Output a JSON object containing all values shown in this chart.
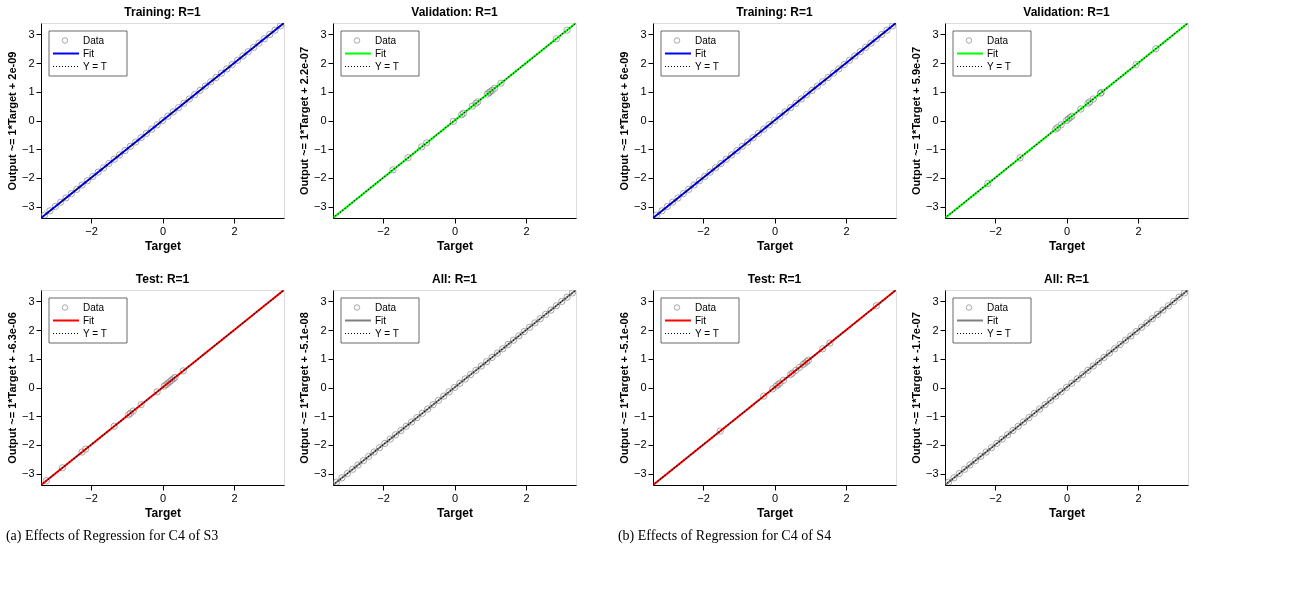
{
  "chart_data": [
    {
      "type": "scatter",
      "title": "Training: R=1",
      "xlabel": "Target",
      "ylabel": "Output ~= 1*Target + 2e-09",
      "xlim": [
        -3.4,
        3.4
      ],
      "ylim": [
        -3.4,
        3.4
      ],
      "xticks": [
        -2,
        0,
        2
      ],
      "yticks": [
        -3,
        -2,
        -1,
        0,
        1,
        2,
        3
      ],
      "legend": "top left",
      "series": [
        {
          "name": "Data",
          "marker": "circle",
          "color": "#808080",
          "x": [
            -3.3,
            -3.15,
            -3.0,
            -2.85,
            -2.7,
            -2.55,
            -2.4,
            -2.25,
            -2.1,
            -1.95,
            -1.8,
            -1.65,
            -1.5,
            -1.35,
            -1.2,
            -1.05,
            -0.9,
            -0.75,
            -0.6,
            -0.45,
            -0.3,
            -0.15,
            0,
            0.15,
            0.3,
            0.45,
            0.6,
            0.75,
            0.9,
            1.05,
            1.2,
            1.35,
            1.5,
            1.65,
            1.8,
            1.95,
            2.1,
            2.25,
            2.4,
            2.55,
            2.7,
            2.85,
            3.0,
            3.15,
            3.3
          ],
          "values": [
            -3.3,
            -3.15,
            -3.0,
            -2.85,
            -2.7,
            -2.55,
            -2.4,
            -2.25,
            -2.1,
            -1.95,
            -1.8,
            -1.65,
            -1.5,
            -1.35,
            -1.2,
            -1.05,
            -0.9,
            -0.75,
            -0.6,
            -0.45,
            -0.3,
            -0.15,
            0,
            0.15,
            0.3,
            0.45,
            0.6,
            0.75,
            0.9,
            1.05,
            1.2,
            1.35,
            1.5,
            1.65,
            1.8,
            1.95,
            2.1,
            2.25,
            2.4,
            2.55,
            2.7,
            2.85,
            3.0,
            3.15,
            3.3
          ]
        },
        {
          "name": "Fit",
          "type": "line",
          "line_style": "solid",
          "color": "#0000ff",
          "x": [
            -3.4,
            3.4
          ],
          "values": [
            -3.4,
            3.4
          ]
        },
        {
          "name": "Y = T",
          "type": "line",
          "line_style": "dotted",
          "color": "#000000",
          "x": [
            -3.4,
            3.4
          ],
          "values": [
            -3.4,
            3.4
          ]
        }
      ]
    },
    {
      "type": "scatter",
      "title": "Validation: R=1",
      "xlabel": "Target",
      "ylabel": "Output ~= 1*Target + 2.2e-07",
      "xlim": [
        -3.4,
        3.4
      ],
      "ylim": [
        -3.4,
        3.4
      ],
      "xticks": [
        -2,
        0,
        2
      ],
      "yticks": [
        -3,
        -2,
        -1,
        0,
        1,
        2,
        3
      ],
      "legend": "top left",
      "series": [
        {
          "name": "Data",
          "marker": "circle",
          "color": "#808080",
          "x": [
            -1.72,
            -1.3,
            -0.92,
            -0.78,
            -0.03,
            0.2,
            0.25,
            0.5,
            0.6,
            0.65,
            0.92,
            0.97,
            1.0,
            1.05,
            1.12,
            1.3,
            2.85,
            3.15
          ],
          "values": [
            -1.72,
            -1.3,
            -0.92,
            -0.78,
            -0.03,
            0.2,
            0.25,
            0.5,
            0.6,
            0.65,
            0.92,
            0.97,
            1.0,
            1.05,
            1.12,
            1.3,
            2.85,
            3.15
          ]
        },
        {
          "name": "Fit",
          "type": "line",
          "line_style": "solid",
          "color": "#00ff00",
          "x": [
            -3.4,
            3.4
          ],
          "values": [
            -3.4,
            3.4
          ]
        },
        {
          "name": "Y = T",
          "type": "line",
          "line_style": "dotted",
          "color": "#000000",
          "x": [
            -3.4,
            3.4
          ],
          "values": [
            -3.4,
            3.4
          ]
        }
      ]
    },
    {
      "type": "scatter",
      "title": "Training: R=1",
      "xlabel": "Target",
      "ylabel": "Output ~= 1*Target + 6e-09",
      "xlim": [
        -3.4,
        3.4
      ],
      "ylim": [
        -3.4,
        3.4
      ],
      "xticks": [
        -2,
        0,
        2
      ],
      "yticks": [
        -3,
        -2,
        -1,
        0,
        1,
        2,
        3
      ],
      "legend": "top left",
      "series": [
        {
          "name": "Data",
          "marker": "circle",
          "color": "#808080",
          "x": [
            -3.3,
            -3.15,
            -3.0,
            -2.85,
            -2.7,
            -2.55,
            -2.4,
            -2.25,
            -2.1,
            -1.95,
            -1.8,
            -1.65,
            -1.5,
            -1.35,
            -1.2,
            -1.05,
            -0.9,
            -0.75,
            -0.6,
            -0.45,
            -0.3,
            -0.15,
            0,
            0.15,
            0.3,
            0.45,
            0.6,
            0.75,
            0.9,
            1.05,
            1.2,
            1.35,
            1.5,
            1.65,
            1.8,
            1.95,
            2.1,
            2.25,
            2.4,
            2.55,
            2.7,
            2.85,
            3.0,
            3.15,
            3.3
          ],
          "values": [
            -3.3,
            -3.15,
            -3.0,
            -2.85,
            -2.7,
            -2.55,
            -2.4,
            -2.25,
            -2.1,
            -1.95,
            -1.8,
            -1.65,
            -1.5,
            -1.35,
            -1.2,
            -1.05,
            -0.9,
            -0.75,
            -0.6,
            -0.45,
            -0.3,
            -0.15,
            0,
            0.15,
            0.3,
            0.45,
            0.6,
            0.75,
            0.9,
            1.05,
            1.2,
            1.35,
            1.5,
            1.65,
            1.8,
            1.95,
            2.1,
            2.25,
            2.4,
            2.55,
            2.7,
            2.85,
            3.0,
            3.15,
            3.3
          ]
        },
        {
          "name": "Fit",
          "type": "line",
          "line_style": "solid",
          "color": "#0000ff",
          "x": [
            -3.4,
            3.4
          ],
          "values": [
            -3.4,
            3.4
          ]
        },
        {
          "name": "Y = T",
          "type": "line",
          "line_style": "dotted",
          "color": "#000000",
          "x": [
            -3.4,
            3.4
          ],
          "values": [
            -3.4,
            3.4
          ]
        }
      ]
    },
    {
      "type": "scatter",
      "title": "Validation: R=1",
      "xlabel": "Target",
      "ylabel": "Output ~= 1*Target + 5.9e-07",
      "xlim": [
        -3.4,
        3.4
      ],
      "ylim": [
        -3.4,
        3.4
      ],
      "xticks": [
        -2,
        0,
        2
      ],
      "yticks": [
        -3,
        -2,
        -1,
        0,
        1,
        2,
        3
      ],
      "legend": "top left",
      "series": [
        {
          "name": "Data",
          "marker": "circle",
          "color": "#808080",
          "x": [
            -2.2,
            -1.3,
            -0.3,
            -0.25,
            -0.15,
            0.0,
            0.05,
            0.1,
            0.15,
            0.4,
            0.6,
            0.65,
            0.75,
            0.95,
            0.97,
            1.95,
            2.5
          ],
          "values": [
            -2.2,
            -1.3,
            -0.3,
            -0.25,
            -0.15,
            0.0,
            0.05,
            0.1,
            0.15,
            0.4,
            0.6,
            0.65,
            0.75,
            0.95,
            0.97,
            1.95,
            2.5
          ]
        },
        {
          "name": "Fit",
          "type": "line",
          "line_style": "solid",
          "color": "#00ff00",
          "x": [
            -3.4,
            3.4
          ],
          "values": [
            -3.4,
            3.4
          ]
        },
        {
          "name": "Y = T",
          "type": "line",
          "line_style": "dotted",
          "color": "#000000",
          "x": [
            -3.4,
            3.4
          ],
          "values": [
            -3.4,
            3.4
          ]
        }
      ]
    },
    {
      "type": "scatter",
      "title": "Test: R=1",
      "xlabel": "Target",
      "ylabel": "Output ~= 1*Target + -6.3e-06",
      "xlim": [
        -3.4,
        3.4
      ],
      "ylim": [
        -3.4,
        3.4
      ],
      "xticks": [
        -2,
        0,
        2
      ],
      "yticks": [
        -3,
        -2,
        -1,
        0,
        1,
        2,
        3
      ],
      "legend": "top left",
      "annotations": [
        "(a) Effects of Regression for C4 of S3"
      ],
      "series": [
        {
          "name": "Data",
          "marker": "circle",
          "color": "#808080",
          "x": [
            -3.25,
            -2.8,
            -2.25,
            -2.15,
            -1.35,
            -0.95,
            -0.9,
            -0.82,
            -0.6,
            -0.15,
            0.05,
            0.1,
            0.15,
            0.2,
            0.25,
            0.3,
            0.35,
            0.58
          ],
          "values": [
            -3.25,
            -2.8,
            -2.25,
            -2.15,
            -1.35,
            -0.95,
            -0.9,
            -0.82,
            -0.6,
            -0.15,
            0.05,
            0.1,
            0.15,
            0.2,
            0.25,
            0.3,
            0.35,
            0.58
          ]
        },
        {
          "name": "Fit",
          "type": "line",
          "line_style": "solid",
          "color": "#ff0000",
          "x": [
            -3.4,
            3.4
          ],
          "values": [
            -3.4,
            3.4
          ]
        },
        {
          "name": "Y = T",
          "type": "line",
          "line_style": "dotted",
          "color": "#000000",
          "x": [
            -3.4,
            3.4
          ],
          "values": [
            -3.4,
            3.4
          ]
        }
      ]
    },
    {
      "type": "scatter",
      "title": "All: R=1",
      "xlabel": "Target",
      "ylabel": "Output ~= 1*Target + -5.1e-08",
      "xlim": [
        -3.4,
        3.4
      ],
      "ylim": [
        -3.4,
        3.4
      ],
      "xticks": [
        -2,
        0,
        2
      ],
      "yticks": [
        -3,
        -2,
        -1,
        0,
        1,
        2,
        3
      ],
      "legend": "top left",
      "series": [
        {
          "name": "Data",
          "marker": "circle",
          "color": "#808080",
          "x": [
            -3.3,
            -3.15,
            -3.0,
            -2.85,
            -2.7,
            -2.55,
            -2.4,
            -2.25,
            -2.1,
            -1.95,
            -1.8,
            -1.65,
            -1.5,
            -1.35,
            -1.2,
            -1.05,
            -0.9,
            -0.75,
            -0.6,
            -0.45,
            -0.3,
            -0.15,
            0,
            0.15,
            0.3,
            0.45,
            0.6,
            0.75,
            0.9,
            1.05,
            1.2,
            1.35,
            1.5,
            1.65,
            1.8,
            1.95,
            2.1,
            2.25,
            2.4,
            2.55,
            2.7,
            2.85,
            3.0,
            3.15,
            3.3
          ],
          "values": [
            -3.3,
            -3.15,
            -3.0,
            -2.85,
            -2.7,
            -2.55,
            -2.4,
            -2.25,
            -2.1,
            -1.95,
            -1.8,
            -1.65,
            -1.5,
            -1.35,
            -1.2,
            -1.05,
            -0.9,
            -0.75,
            -0.6,
            -0.45,
            -0.3,
            -0.15,
            0,
            0.15,
            0.3,
            0.45,
            0.6,
            0.75,
            0.9,
            1.05,
            1.2,
            1.35,
            1.5,
            1.65,
            1.8,
            1.95,
            2.1,
            2.25,
            2.4,
            2.55,
            2.7,
            2.85,
            3.0,
            3.15,
            3.3
          ]
        },
        {
          "name": "Fit",
          "type": "line",
          "line_style": "solid",
          "color": "#808080",
          "x": [
            -3.4,
            3.4
          ],
          "values": [
            -3.4,
            3.4
          ]
        },
        {
          "name": "Y = T",
          "type": "line",
          "line_style": "dotted",
          "color": "#000000",
          "x": [
            -3.4,
            3.4
          ],
          "values": [
            -3.4,
            3.4
          ]
        }
      ]
    },
    {
      "type": "scatter",
      "title": "Test: R=1",
      "xlabel": "Target",
      "ylabel": "Output ~= 1*Target + -5.1e-06",
      "xlim": [
        -3.4,
        3.4
      ],
      "ylim": [
        -3.4,
        3.4
      ],
      "xticks": [
        -2,
        0,
        2
      ],
      "yticks": [
        -3,
        -2,
        -1,
        0,
        1,
        2,
        3
      ],
      "legend": "top left",
      "annotations": [
        "(b) Effects of Regression for C4 of S4"
      ],
      "series": [
        {
          "name": "Data",
          "marker": "circle",
          "color": "#808080",
          "x": [
            -1.52,
            -0.3,
            -0.05,
            0.05,
            0.1,
            0.15,
            0.25,
            0.45,
            0.5,
            0.6,
            0.7,
            0.8,
            0.85,
            0.9,
            0.95,
            1.35,
            1.55,
            2.85
          ],
          "values": [
            -1.52,
            -0.3,
            -0.05,
            0.05,
            0.1,
            0.15,
            0.25,
            0.45,
            0.5,
            0.6,
            0.7,
            0.8,
            0.85,
            0.9,
            0.95,
            1.35,
            1.55,
            2.85
          ]
        },
        {
          "name": "Fit",
          "type": "line",
          "line_style": "solid",
          "color": "#ff0000",
          "x": [
            -3.4,
            3.4
          ],
          "values": [
            -3.4,
            3.4
          ]
        },
        {
          "name": "Y = T",
          "type": "line",
          "line_style": "dotted",
          "color": "#000000",
          "x": [
            -3.4,
            3.4
          ],
          "values": [
            -3.4,
            3.4
          ]
        }
      ]
    },
    {
      "type": "scatter",
      "title": "All: R=1",
      "xlabel": "Target",
      "ylabel": "Output ~= 1*Target + -1.7e-07",
      "xlim": [
        -3.4,
        3.4
      ],
      "ylim": [
        -3.4,
        3.4
      ],
      "xticks": [
        -2,
        0,
        2
      ],
      "yticks": [
        -3,
        -2,
        -1,
        0,
        1,
        2,
        3
      ],
      "legend": "top left",
      "series": [
        {
          "name": "Data",
          "marker": "circle",
          "color": "#808080",
          "x": [
            -3.3,
            -3.15,
            -3.0,
            -2.85,
            -2.7,
            -2.55,
            -2.4,
            -2.25,
            -2.1,
            -1.95,
            -1.8,
            -1.65,
            -1.5,
            -1.35,
            -1.2,
            -1.05,
            -0.9,
            -0.75,
            -0.6,
            -0.45,
            -0.3,
            -0.15,
            0,
            0.15,
            0.3,
            0.45,
            0.6,
            0.75,
            0.9,
            1.05,
            1.2,
            1.35,
            1.5,
            1.65,
            1.8,
            1.95,
            2.1,
            2.25,
            2.4,
            2.55,
            2.7,
            2.85,
            3.0,
            3.15,
            3.3
          ],
          "values": [
            -3.3,
            -3.15,
            -3.0,
            -2.85,
            -2.7,
            -2.55,
            -2.4,
            -2.25,
            -2.1,
            -1.95,
            -1.8,
            -1.65,
            -1.5,
            -1.35,
            -1.2,
            -1.05,
            -0.9,
            -0.75,
            -0.6,
            -0.45,
            -0.3,
            -0.15,
            0,
            0.15,
            0.3,
            0.45,
            0.6,
            0.75,
            0.9,
            1.05,
            1.2,
            1.35,
            1.5,
            1.65,
            1.8,
            1.95,
            2.1,
            2.25,
            2.4,
            2.55,
            2.7,
            2.85,
            3.0,
            3.15,
            3.3
          ]
        },
        {
          "name": "Fit",
          "type": "line",
          "line_style": "solid",
          "color": "#808080",
          "x": [
            -3.4,
            3.4
          ],
          "values": [
            -3.4,
            3.4
          ]
        },
        {
          "name": "Y = T",
          "type": "line",
          "line_style": "dotted",
          "color": "#000000",
          "x": [
            -3.4,
            3.4
          ],
          "values": [
            -3.4,
            3.4
          ]
        }
      ]
    }
  ]
}
